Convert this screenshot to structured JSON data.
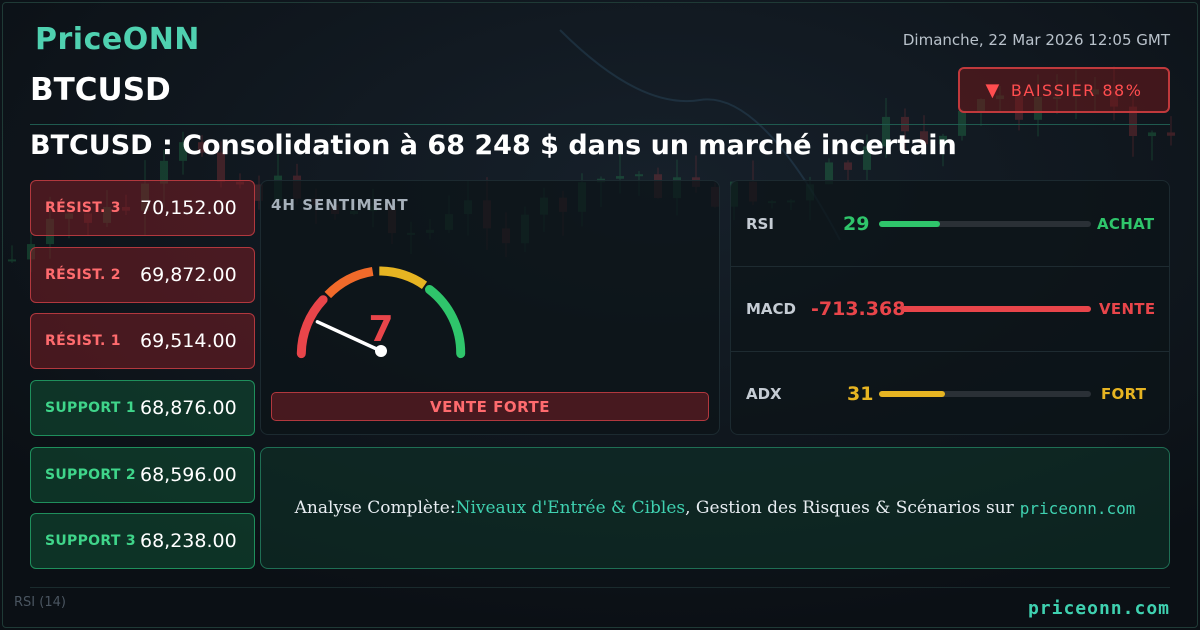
{
  "brand": "PriceONN",
  "datetime": "Dimanche, 22 Mar 2026 12:05 GMT",
  "symbol": "BTCUSD",
  "badge": {
    "icon": "down-triangle-icon",
    "text": "BAISSIER 88%"
  },
  "headline": "BTCUSD : Consolidation à 68 248 $ dans un marché incertain",
  "levels": [
    {
      "label": "RÉSIST. 3",
      "value": "70,152.00",
      "type": "resistance"
    },
    {
      "label": "RÉSIST. 2",
      "value": "69,872.00",
      "type": "resistance"
    },
    {
      "label": "RÉSIST. 1",
      "value": "69,514.00",
      "type": "resistance"
    },
    {
      "label": "SUPPORT 1",
      "value": "68,876.00",
      "type": "support"
    },
    {
      "label": "SUPPORT 2",
      "value": "68,596.00",
      "type": "support"
    },
    {
      "label": "SUPPORT 3",
      "value": "68,238.00",
      "type": "support"
    }
  ],
  "sentiment": {
    "title": "4H SENTIMENT",
    "score": "7",
    "score_fraction": 0.07,
    "label": "VENTE FORTE"
  },
  "indicators": [
    {
      "name": "RSI",
      "value": "29",
      "level": 0.29,
      "tag": "ACHAT",
      "color": "#2fc56b"
    },
    {
      "name": "MACD",
      "value": "-713.368",
      "level": 1.0,
      "tag": "VENTE",
      "color": "#e8454a"
    },
    {
      "name": "ADX",
      "value": "31",
      "level": 0.31,
      "tag": "FORT",
      "color": "#e6b422"
    }
  ],
  "cta": {
    "prefix": "Analyse Complète: ",
    "highlight": "Niveaux d'Entrée & Cibles",
    "suffix": ", Gestion des Risques & Scénarios sur",
    "site": "priceonn.com"
  },
  "footer_url": "priceonn.com",
  "chart_ghost": {
    "rsi_label": "RSI",
    "rsi_period": "(14)"
  },
  "colors": {
    "accent": "#4fd1b0",
    "bearish": "#e8454a",
    "bullish": "#2fc56b",
    "neutral": "#e6b422"
  }
}
